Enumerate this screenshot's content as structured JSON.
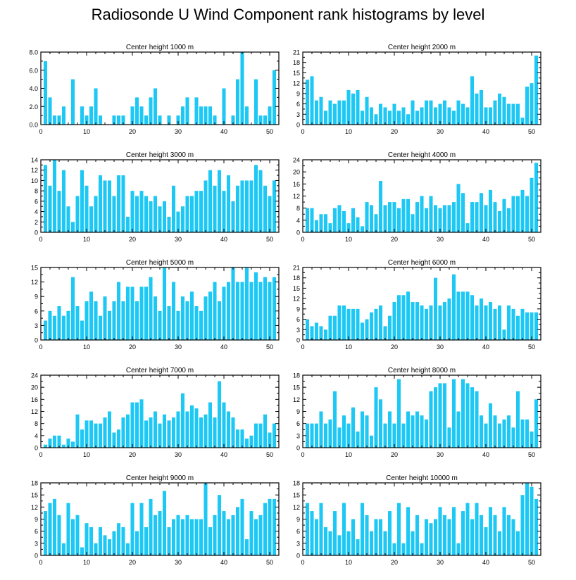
{
  "title": "Radiosonde U Wind Component rank histograms by level",
  "bar_color": "#1ec8f5",
  "chart_data": [
    {
      "type": "bar",
      "title": "Center height 1000 m",
      "ylim": [
        0,
        8
      ],
      "yticks": [
        0,
        2,
        4,
        6,
        8
      ],
      "ytick_labels": [
        "0.0",
        "2.0",
        "4.0",
        "6.0",
        "8.0"
      ],
      "xlim": [
        0,
        52
      ],
      "xticks": [
        0,
        10,
        20,
        30,
        40,
        50
      ],
      "values": [
        7,
        3,
        1,
        1,
        2,
        0,
        5,
        0,
        2,
        1,
        2,
        4,
        1,
        0,
        0,
        1,
        1,
        1,
        0,
        2,
        3,
        2,
        1,
        3,
        4,
        1,
        0,
        1,
        0,
        1,
        2,
        3,
        0,
        3,
        2,
        2,
        2,
        1,
        0,
        4,
        0,
        1,
        5,
        8,
        2,
        0,
        5,
        1,
        1,
        2,
        6
      ]
    },
    {
      "type": "bar",
      "title": "Center height 2000 m",
      "ylim": [
        0,
        21
      ],
      "yticks": [
        0,
        3,
        6,
        9,
        12,
        15,
        18,
        21
      ],
      "ytick_labels": [
        "0",
        "3",
        "6",
        "9",
        "12",
        "15",
        "18",
        "21"
      ],
      "xlim": [
        0,
        52
      ],
      "xticks": [
        0,
        10,
        20,
        30,
        40,
        50
      ],
      "values": [
        13,
        14,
        7,
        8,
        4,
        7,
        6,
        7,
        7,
        10,
        9,
        10,
        4,
        8,
        5,
        3,
        6,
        5,
        4,
        6,
        4,
        5,
        3,
        7,
        4,
        5,
        7,
        7,
        5,
        6,
        7,
        5,
        4,
        7,
        6,
        5,
        14,
        9,
        10,
        5,
        5,
        7,
        9,
        8,
        6,
        6,
        6,
        2,
        11,
        12,
        20
      ]
    },
    {
      "type": "bar",
      "title": "Center height 3000 m",
      "ylim": [
        0,
        14
      ],
      "yticks": [
        0,
        2,
        4,
        6,
        8,
        10,
        12,
        14
      ],
      "ytick_labels": [
        "0",
        "2",
        "4",
        "6",
        "8",
        "10",
        "12",
        "14"
      ],
      "xlim": [
        0,
        52
      ],
      "xticks": [
        0,
        10,
        20,
        30,
        40,
        50
      ],
      "values": [
        13,
        9,
        14,
        8,
        12,
        5,
        2,
        7,
        12,
        9,
        5,
        7,
        11,
        10,
        10,
        7,
        11,
        11,
        3,
        8,
        7,
        8,
        7,
        6,
        7,
        5,
        6,
        3,
        9,
        4,
        5,
        7,
        7,
        8,
        8,
        10,
        12,
        9,
        12,
        8,
        11,
        6,
        9,
        10,
        10,
        10,
        13,
        12,
        9,
        7,
        10
      ]
    },
    {
      "type": "bar",
      "title": "Center height 4000 m",
      "ylim": [
        0,
        24
      ],
      "yticks": [
        0,
        4,
        8,
        12,
        16,
        20,
        24
      ],
      "ytick_labels": [
        "0",
        "4",
        "8",
        "12",
        "16",
        "20",
        "24"
      ],
      "xlim": [
        0,
        52
      ],
      "xticks": [
        0,
        10,
        20,
        30,
        40,
        50
      ],
      "values": [
        8,
        8,
        4,
        6,
        6,
        3,
        8,
        9,
        7,
        3,
        8,
        5,
        2,
        10,
        9,
        6,
        17,
        9,
        10,
        10,
        8,
        11,
        11,
        6,
        10,
        12,
        8,
        12,
        9,
        8,
        9,
        9,
        10,
        16,
        13,
        3,
        10,
        10,
        13,
        9,
        14,
        10,
        7,
        11,
        8,
        12,
        12,
        14,
        12,
        18,
        23
      ]
    },
    {
      "type": "bar",
      "title": "Center height 5000 m",
      "ylim": [
        0,
        15
      ],
      "yticks": [
        0,
        3,
        6,
        9,
        12,
        15
      ],
      "ytick_labels": [
        "0",
        "3",
        "6",
        "9",
        "12",
        "15"
      ],
      "xlim": [
        0,
        52
      ],
      "xticks": [
        0,
        10,
        20,
        30,
        40,
        50
      ],
      "values": [
        4,
        6,
        5,
        7,
        5,
        6,
        13,
        7,
        4,
        8,
        10,
        8,
        5,
        9,
        6,
        8,
        12,
        8,
        11,
        11,
        8,
        11,
        11,
        13,
        9,
        6,
        15,
        7,
        12,
        6,
        9,
        8,
        10,
        7,
        6,
        9,
        10,
        12,
        8,
        11,
        12,
        15,
        12,
        12,
        15,
        12,
        14,
        12,
        13,
        12,
        13
      ]
    },
    {
      "type": "bar",
      "title": "Center height 6000 m",
      "ylim": [
        0,
        21
      ],
      "yticks": [
        0,
        3,
        6,
        9,
        12,
        15,
        18,
        21
      ],
      "ytick_labels": [
        "0",
        "3",
        "6",
        "9",
        "12",
        "15",
        "18",
        "21"
      ],
      "xlim": [
        0,
        52
      ],
      "xticks": [
        0,
        10,
        20,
        30,
        40,
        50
      ],
      "values": [
        6,
        4,
        5,
        4,
        3,
        7,
        7,
        10,
        10,
        9,
        9,
        9,
        5,
        6,
        8,
        9,
        10,
        4,
        7,
        11,
        13,
        13,
        14,
        11,
        11,
        10,
        9,
        10,
        18,
        10,
        11,
        12,
        19,
        14,
        14,
        14,
        13,
        10,
        12,
        10,
        11,
        9,
        10,
        3,
        10,
        9,
        7,
        9,
        8,
        8,
        8
      ]
    },
    {
      "type": "bar",
      "title": "Center height 7000 m",
      "ylim": [
        0,
        24
      ],
      "yticks": [
        0,
        4,
        8,
        12,
        16,
        20,
        24
      ],
      "ytick_labels": [
        "0",
        "4",
        "8",
        "12",
        "16",
        "20",
        "24"
      ],
      "xlim": [
        0,
        52
      ],
      "xticks": [
        0,
        10,
        20,
        30,
        40,
        50
      ],
      "values": [
        1,
        3,
        4,
        4,
        1,
        3,
        2,
        11,
        6,
        9,
        9,
        8,
        8,
        10,
        12,
        5,
        6,
        10,
        11,
        15,
        15,
        16,
        9,
        10,
        12,
        8,
        11,
        9,
        10,
        12,
        18,
        12,
        14,
        13,
        10,
        11,
        15,
        10,
        22,
        15,
        12,
        10,
        6,
        6,
        3,
        4,
        8,
        8,
        11,
        5,
        8
      ]
    },
    {
      "type": "bar",
      "title": "Center height 8000 m",
      "ylim": [
        0,
        18
      ],
      "yticks": [
        0,
        3,
        6,
        9,
        12,
        15,
        18
      ],
      "ytick_labels": [
        "0",
        "3",
        "6",
        "9",
        "12",
        "15",
        "18"
      ],
      "xlim": [
        0,
        52
      ],
      "xticks": [
        0,
        10,
        20,
        30,
        40,
        50
      ],
      "values": [
        6,
        6,
        6,
        9,
        6,
        7,
        14,
        5,
        8,
        6,
        10,
        4,
        9,
        8,
        3,
        15,
        12,
        6,
        9,
        6,
        17,
        6,
        9,
        8,
        9,
        8,
        7,
        14,
        15,
        16,
        16,
        5,
        17,
        9,
        17,
        16,
        15,
        14,
        8,
        6,
        11,
        8,
        6,
        7,
        8,
        5,
        14,
        7,
        7,
        4,
        12
      ]
    },
    {
      "type": "bar",
      "title": "Center height 9000 m",
      "ylim": [
        0,
        18
      ],
      "yticks": [
        0,
        3,
        6,
        9,
        12,
        15,
        18
      ],
      "ytick_labels": [
        "0",
        "3",
        "6",
        "9",
        "12",
        "15",
        "18"
      ],
      "xlim": [
        0,
        52
      ],
      "xticks": [
        0,
        10,
        20,
        30,
        40,
        50
      ],
      "values": [
        11,
        13,
        14,
        10,
        3,
        13,
        9,
        10,
        2,
        8,
        7,
        3,
        7,
        5,
        4,
        6,
        8,
        7,
        3,
        13,
        6,
        13,
        7,
        14,
        10,
        11,
        16,
        7,
        9,
        10,
        9,
        10,
        9,
        9,
        9,
        18,
        7,
        10,
        15,
        11,
        9,
        10,
        12,
        14,
        4,
        11,
        9,
        10,
        13,
        14,
        14
      ]
    },
    {
      "type": "bar",
      "title": "Center height 10000 m",
      "ylim": [
        0,
        18
      ],
      "yticks": [
        0,
        3,
        6,
        9,
        12,
        15,
        18
      ],
      "ytick_labels": [
        "0",
        "3",
        "6",
        "9",
        "12",
        "15",
        "18"
      ],
      "xlim": [
        0,
        52
      ],
      "xticks": [
        0,
        10,
        20,
        30,
        40,
        50
      ],
      "values": [
        13,
        11,
        9,
        13,
        7,
        6,
        11,
        5,
        13,
        6,
        9,
        4,
        13,
        10,
        6,
        9,
        9,
        6,
        11,
        3,
        13,
        3,
        12,
        6,
        10,
        3,
        9,
        8,
        9,
        12,
        10,
        9,
        12,
        3,
        11,
        13,
        9,
        13,
        10,
        7,
        12,
        10,
        6,
        12,
        10,
        9,
        6,
        15,
        18,
        17,
        14
      ]
    }
  ]
}
